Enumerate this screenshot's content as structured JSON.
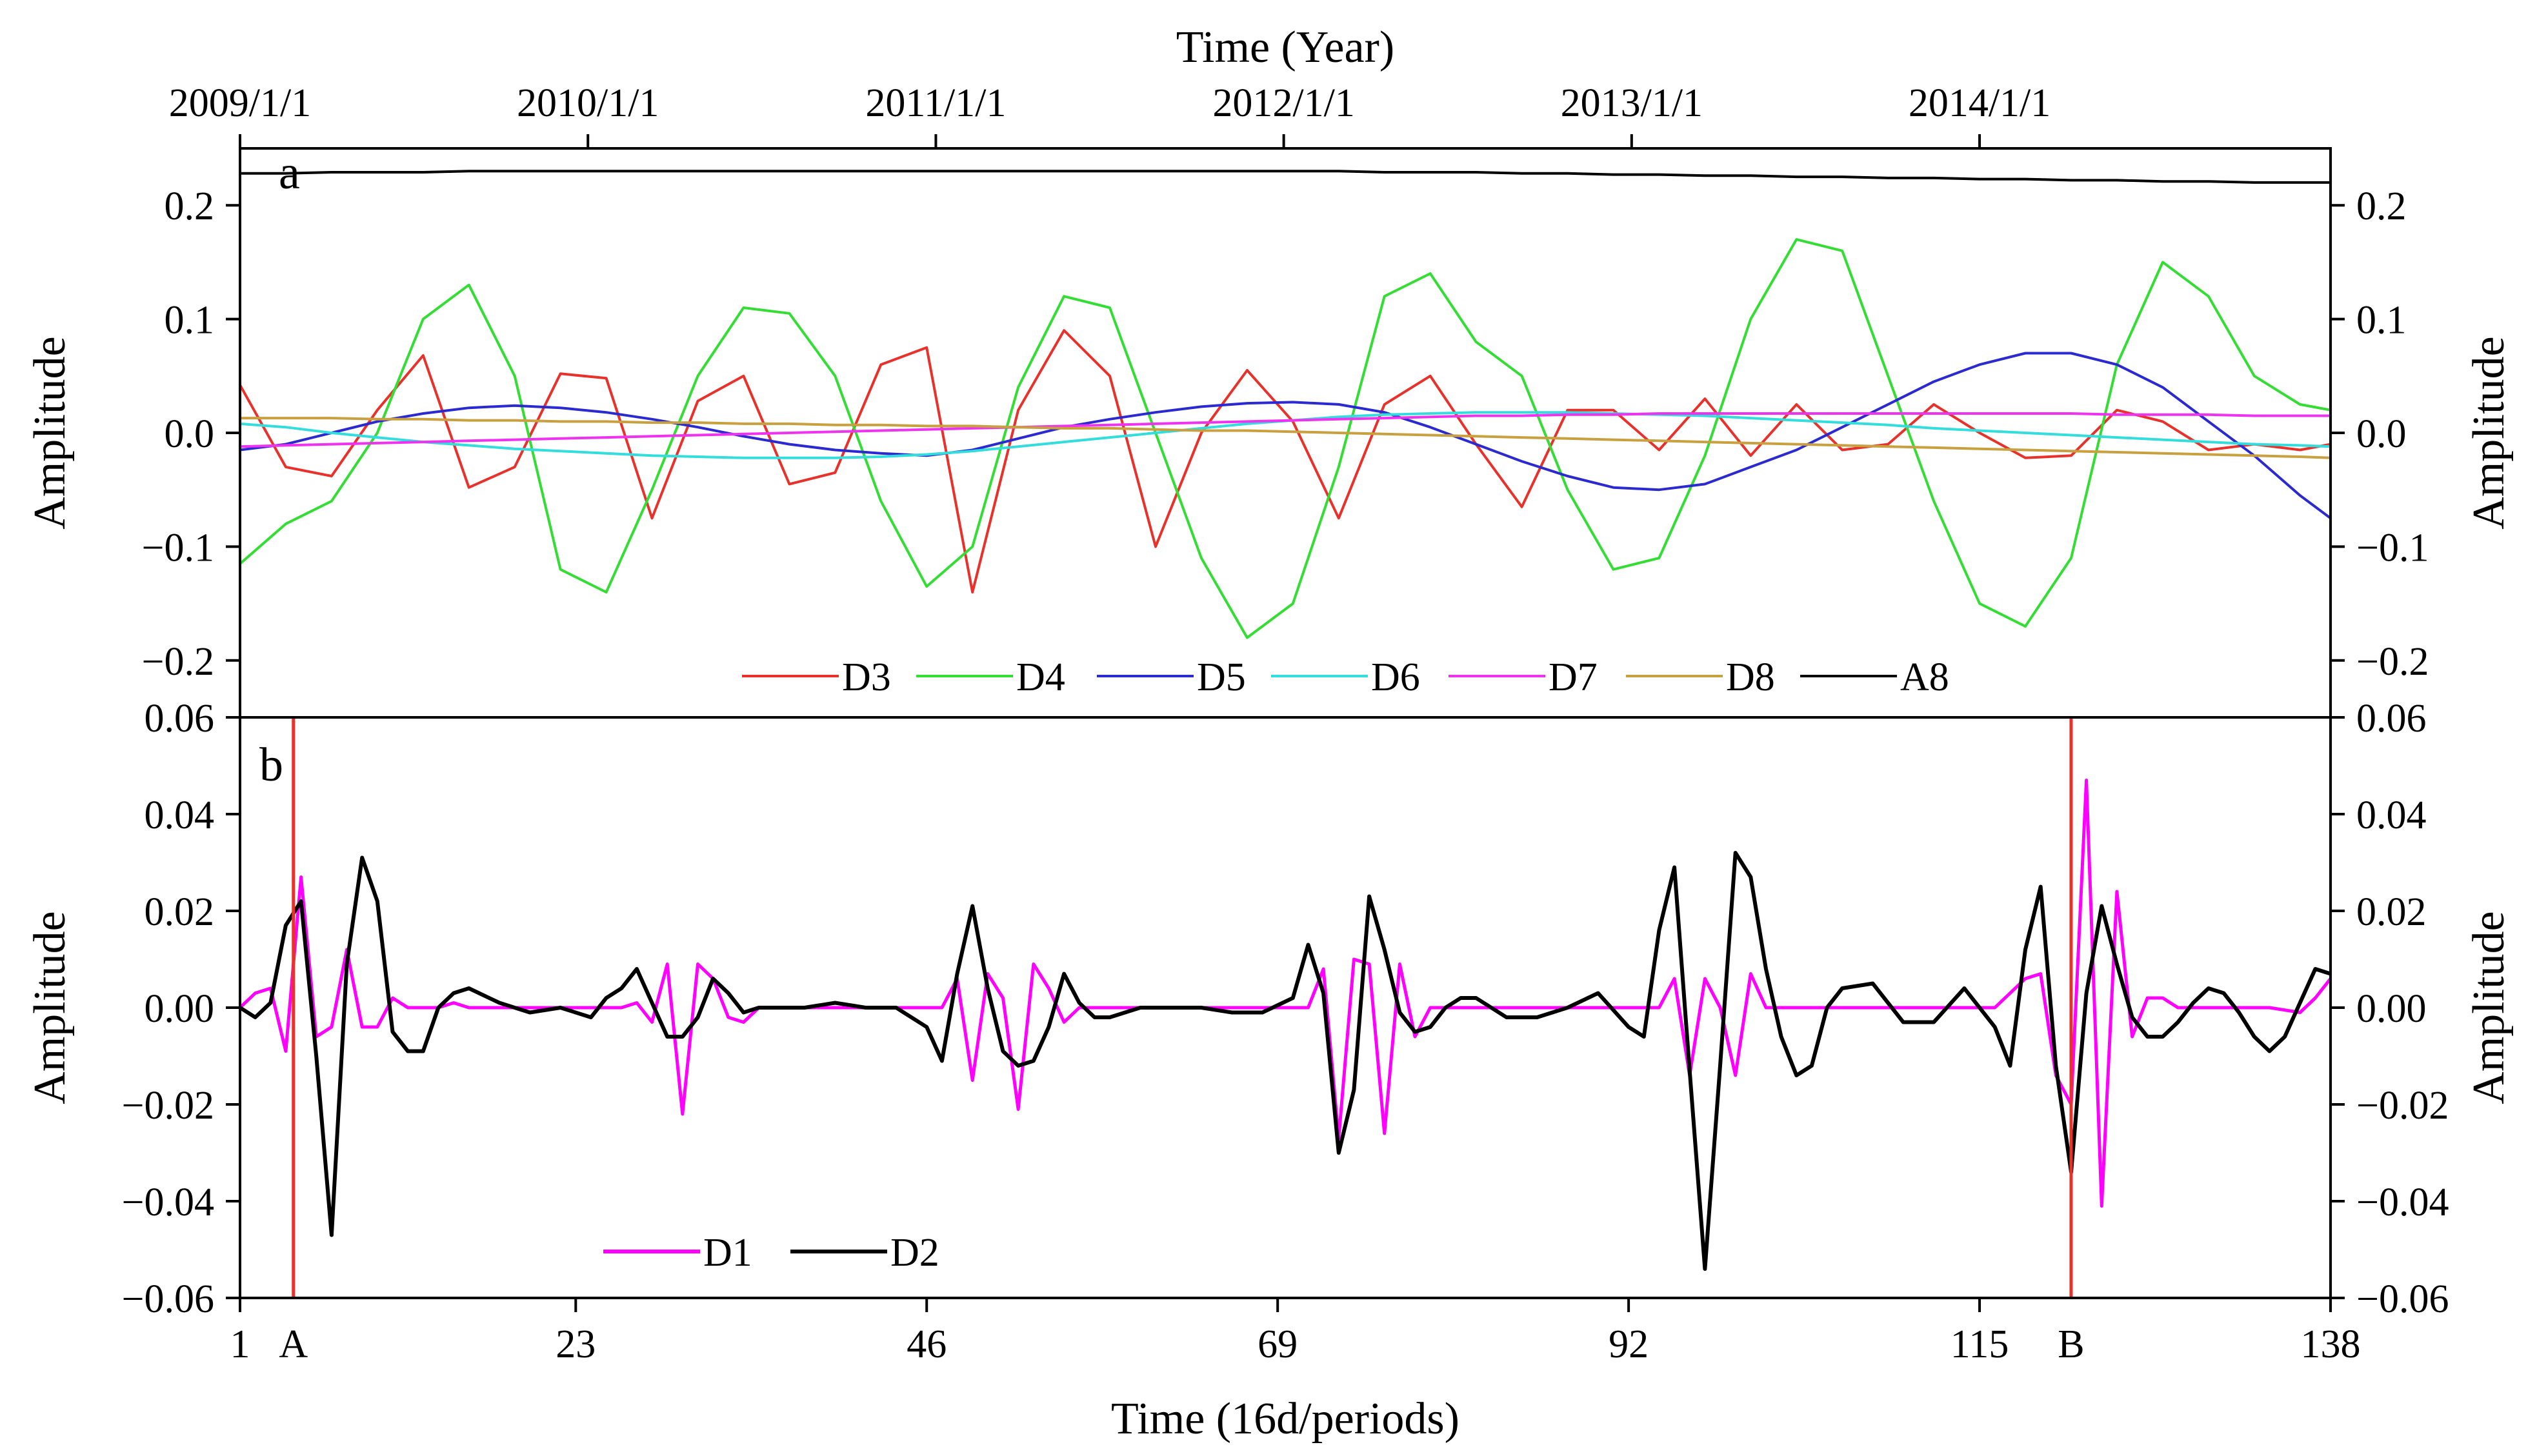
{
  "chart_data": [
    {
      "panel_label": "a",
      "type": "line",
      "top_axis": {
        "title": "Time (Year)",
        "tick_labels": [
          "2009/1/1",
          "2010/1/1",
          "2011/1/1",
          "2012/1/1",
          "2013/1/1",
          "2014/1/1"
        ],
        "tick_periods": [
          1,
          23.8,
          46.6,
          69.4,
          92.2,
          115
        ]
      },
      "ylabel": "Amplitude",
      "ylabel_right": "Amplitude",
      "xlim": [
        1,
        138
      ],
      "ylim": [
        -0.25,
        0.25
      ],
      "yticks": [
        -0.2,
        -0.1,
        0.0,
        0.1,
        0.2
      ],
      "ytick_labels": [
        "−0.2",
        "−0.1",
        "0.0",
        "0.1",
        "0.2"
      ],
      "x": [
        1,
        4,
        7,
        10,
        13,
        16,
        19,
        22,
        25,
        28,
        31,
        34,
        37,
        40,
        43,
        46,
        49,
        52,
        55,
        58,
        61,
        64,
        67,
        70,
        73,
        76,
        79,
        82,
        85,
        88,
        91,
        94,
        97,
        100,
        103,
        106,
        109,
        112,
        115,
        118,
        121,
        124,
        127,
        130,
        133,
        136,
        138
      ],
      "series": [
        {
          "name": "D3",
          "color": "#e8312a",
          "values": [
            0.042,
            -0.03,
            -0.038,
            0.02,
            0.068,
            -0.048,
            -0.03,
            0.052,
            0.048,
            -0.075,
            0.028,
            0.05,
            -0.045,
            -0.035,
            0.06,
            0.075,
            -0.14,
            0.02,
            0.09,
            0.05,
            -0.1,
            0.0,
            0.055,
            0.01,
            -0.075,
            0.025,
            0.05,
            -0.01,
            -0.065,
            0.02,
            0.02,
            -0.015,
            0.03,
            -0.02,
            0.025,
            -0.015,
            -0.01,
            0.025,
            0.0,
            -0.022,
            -0.02,
            0.02,
            0.01,
            -0.015,
            -0.01,
            -0.015,
            -0.01
          ]
        },
        {
          "name": "D4",
          "color": "#33dd33",
          "values": [
            -0.115,
            -0.08,
            -0.06,
            0.0,
            0.1,
            0.13,
            0.05,
            -0.12,
            -0.14,
            -0.05,
            0.05,
            0.11,
            0.105,
            0.05,
            -0.06,
            -0.135,
            -0.1,
            0.04,
            0.12,
            0.11,
            0.0,
            -0.11,
            -0.18,
            -0.15,
            -0.03,
            0.12,
            0.14,
            0.08,
            0.05,
            -0.05,
            -0.12,
            -0.11,
            -0.02,
            0.1,
            0.17,
            0.16,
            0.05,
            -0.06,
            -0.15,
            -0.17,
            -0.11,
            0.06,
            0.15,
            0.12,
            0.05,
            0.025,
            0.02
          ]
        },
        {
          "name": "D5",
          "color": "#2a2ad0",
          "values": [
            -0.015,
            -0.01,
            0.0,
            0.01,
            0.017,
            0.022,
            0.024,
            0.022,
            0.018,
            0.012,
            0.005,
            -0.003,
            -0.01,
            -0.015,
            -0.018,
            -0.02,
            -0.015,
            -0.005,
            0.005,
            0.012,
            0.018,
            0.023,
            0.026,
            0.027,
            0.025,
            0.018,
            0.005,
            -0.01,
            -0.025,
            -0.038,
            -0.048,
            -0.05,
            -0.045,
            -0.03,
            -0.015,
            0.005,
            0.025,
            0.045,
            0.06,
            0.07,
            0.07,
            0.06,
            0.04,
            0.01,
            -0.02,
            -0.055,
            -0.075
          ]
        },
        {
          "name": "D6",
          "color": "#33dddd",
          "values": [
            0.008,
            0.005,
            0.0,
            -0.004,
            -0.008,
            -0.011,
            -0.014,
            -0.016,
            -0.018,
            -0.02,
            -0.021,
            -0.022,
            -0.022,
            -0.022,
            -0.021,
            -0.019,
            -0.016,
            -0.012,
            -0.008,
            -0.004,
            0.0,
            0.004,
            0.008,
            0.011,
            0.014,
            0.016,
            0.017,
            0.018,
            0.018,
            0.018,
            0.017,
            0.016,
            0.015,
            0.013,
            0.011,
            0.009,
            0.007,
            0.004,
            0.002,
            0.0,
            -0.002,
            -0.004,
            -0.006,
            -0.008,
            -0.01,
            -0.011,
            -0.012
          ]
        },
        {
          "name": "D7",
          "color": "#ee33ee",
          "values": [
            -0.012,
            -0.011,
            -0.01,
            -0.009,
            -0.008,
            -0.007,
            -0.006,
            -0.005,
            -0.004,
            -0.003,
            -0.002,
            -0.001,
            0.0,
            0.001,
            0.002,
            0.003,
            0.004,
            0.005,
            0.006,
            0.007,
            0.008,
            0.009,
            0.01,
            0.011,
            0.012,
            0.013,
            0.014,
            0.015,
            0.015,
            0.016,
            0.016,
            0.017,
            0.017,
            0.017,
            0.017,
            0.017,
            0.017,
            0.017,
            0.017,
            0.017,
            0.017,
            0.016,
            0.016,
            0.016,
            0.015,
            0.015,
            0.015
          ]
        },
        {
          "name": "D8",
          "color": "#c8a040",
          "values": [
            0.013,
            0.013,
            0.013,
            0.012,
            0.012,
            0.011,
            0.011,
            0.01,
            0.01,
            0.009,
            0.009,
            0.008,
            0.008,
            0.007,
            0.007,
            0.006,
            0.006,
            0.005,
            0.004,
            0.004,
            0.003,
            0.002,
            0.002,
            0.001,
            0.0,
            -0.001,
            -0.002,
            -0.003,
            -0.004,
            -0.005,
            -0.006,
            -0.007,
            -0.008,
            -0.009,
            -0.01,
            -0.011,
            -0.012,
            -0.013,
            -0.014,
            -0.015,
            -0.016,
            -0.017,
            -0.018,
            -0.019,
            -0.02,
            -0.021,
            -0.022
          ]
        },
        {
          "name": "A8",
          "color": "#000000",
          "values": [
            0.228,
            0.228,
            0.229,
            0.229,
            0.229,
            0.23,
            0.23,
            0.23,
            0.23,
            0.23,
            0.23,
            0.23,
            0.23,
            0.23,
            0.23,
            0.23,
            0.23,
            0.23,
            0.23,
            0.23,
            0.23,
            0.23,
            0.23,
            0.23,
            0.23,
            0.229,
            0.229,
            0.229,
            0.228,
            0.228,
            0.227,
            0.227,
            0.226,
            0.226,
            0.225,
            0.225,
            0.224,
            0.224,
            0.223,
            0.223,
            0.222,
            0.222,
            0.221,
            0.221,
            0.22,
            0.22,
            0.22
          ]
        }
      ],
      "legend": [
        "D3",
        "D4",
        "D5",
        "D6",
        "D7",
        "D8",
        "A8"
      ]
    },
    {
      "panel_label": "b",
      "type": "line",
      "xlabel": "Time (16d/periods)",
      "ylabel": "Amplitude",
      "ylabel_right": "Amplitude",
      "xlim": [
        1,
        138
      ],
      "xticks": [
        1,
        23,
        46,
        69,
        92,
        115,
        138
      ],
      "xtick_labels": [
        "1",
        "23",
        "46",
        "69",
        "92",
        "115",
        "138"
      ],
      "ylim": [
        -0.06,
        0.06
      ],
      "yticks": [
        -0.06,
        -0.04,
        -0.02,
        0.0,
        0.02,
        0.04,
        0.06
      ],
      "ytick_labels": [
        "−0.06",
        "−0.04",
        "−0.02",
        "0.00",
        "0.02",
        "0.04",
        "0.06"
      ],
      "series": [
        {
          "name": "D1",
          "color": "#ff00ff",
          "x": [
            1,
            2,
            3,
            4,
            5,
            6,
            7,
            8,
            9,
            10,
            11,
            12,
            13,
            14,
            15,
            16,
            18,
            20,
            22,
            24,
            26,
            27,
            28,
            29,
            30,
            31,
            32,
            33,
            34,
            35,
            37,
            40,
            44,
            47,
            48,
            49,
            50,
            51,
            52,
            53,
            54,
            55,
            56,
            57,
            58,
            60,
            65,
            70,
            71,
            72,
            73,
            74,
            75,
            76,
            77,
            78,
            79,
            80,
            81,
            82,
            84,
            88,
            92,
            94,
            95,
            96,
            97,
            98,
            99,
            100,
            101,
            102,
            103,
            104,
            105,
            106,
            108,
            112,
            116,
            118,
            119,
            120,
            121,
            122,
            123,
            124,
            125,
            126,
            127,
            128,
            129,
            130,
            131,
            132,
            134,
            136,
            137,
            138
          ],
          "values": [
            0.0,
            0.003,
            0.004,
            -0.009,
            0.027,
            -0.006,
            -0.004,
            0.012,
            -0.004,
            -0.004,
            0.002,
            0.0,
            0.0,
            0.0,
            0.001,
            0.0,
            0.0,
            0.0,
            0.0,
            0.0,
            0.0,
            0.001,
            -0.003,
            0.009,
            -0.022,
            0.009,
            0.006,
            -0.002,
            -0.003,
            0.0,
            0.0,
            0.0,
            0.0,
            0.0,
            0.006,
            -0.015,
            0.007,
            0.002,
            -0.021,
            0.009,
            0.004,
            -0.003,
            0.0,
            0.0,
            0.0,
            0.0,
            0.0,
            0.0,
            0.0,
            0.008,
            -0.027,
            0.01,
            0.009,
            -0.026,
            0.009,
            -0.006,
            0.0,
            0.0,
            0.0,
            0.0,
            0.0,
            0.0,
            0.0,
            0.0,
            0.006,
            -0.014,
            0.006,
            0.0,
            -0.014,
            0.007,
            0.0,
            0.0,
            0.0,
            0.0,
            0.0,
            0.0,
            0.0,
            0.0,
            0.0,
            0.006,
            0.007,
            -0.014,
            -0.02,
            0.047,
            -0.041,
            0.024,
            -0.006,
            0.002,
            0.002,
            0.0,
            0.0,
            0.0,
            0.0,
            0.0,
            0.0,
            -0.001,
            0.002,
            0.006
          ]
        },
        {
          "name": "D2",
          "color": "#000000",
          "x": [
            1,
            2,
            3,
            4,
            5,
            6,
            7,
            8,
            9,
            10,
            11,
            12,
            13,
            14,
            15,
            16,
            18,
            20,
            22,
            24,
            25,
            26,
            27,
            28,
            29,
            30,
            31,
            32,
            33,
            34,
            35,
            36,
            38,
            40,
            42,
            44,
            46,
            47,
            48,
            49,
            50,
            51,
            52,
            53,
            54,
            55,
            56,
            57,
            58,
            60,
            62,
            64,
            66,
            68,
            70,
            71,
            72,
            73,
            74,
            75,
            76,
            77,
            78,
            79,
            80,
            81,
            82,
            84,
            86,
            88,
            90,
            92,
            93,
            94,
            95,
            96,
            97,
            98,
            99,
            100,
            101,
            102,
            103,
            104,
            105,
            106,
            108,
            110,
            112,
            114,
            116,
            117,
            118,
            119,
            120,
            121,
            122,
            123,
            124,
            125,
            126,
            127,
            128,
            129,
            130,
            131,
            132,
            133,
            134,
            135,
            136,
            137,
            138
          ],
          "values": [
            0.0,
            -0.002,
            0.001,
            0.017,
            0.022,
            -0.01,
            -0.047,
            0.009,
            0.031,
            0.022,
            -0.005,
            -0.009,
            -0.009,
            0.0,
            0.003,
            0.004,
            0.001,
            -0.001,
            0.0,
            -0.002,
            0.002,
            0.004,
            0.008,
            0.001,
            -0.006,
            -0.006,
            -0.002,
            0.006,
            0.003,
            -0.001,
            0.0,
            0.0,
            0.0,
            0.001,
            0.0,
            0.0,
            -0.004,
            -0.011,
            0.007,
            0.021,
            0.004,
            -0.009,
            -0.012,
            -0.011,
            -0.004,
            0.007,
            0.001,
            -0.002,
            -0.002,
            0.0,
            0.0,
            0.0,
            -0.001,
            -0.001,
            0.002,
            0.013,
            0.003,
            -0.03,
            -0.017,
            0.023,
            0.012,
            -0.001,
            -0.005,
            -0.004,
            0.0,
            0.002,
            0.002,
            -0.002,
            -0.002,
            0.0,
            0.003,
            -0.004,
            -0.006,
            0.016,
            0.029,
            -0.013,
            -0.054,
            -0.012,
            0.032,
            0.027,
            0.008,
            -0.006,
            -0.014,
            -0.012,
            0.0,
            0.004,
            0.005,
            -0.003,
            -0.003,
            0.004,
            -0.004,
            -0.012,
            0.012,
            0.025,
            -0.012,
            -0.034,
            0.003,
            0.021,
            0.009,
            -0.002,
            -0.006,
            -0.006,
            -0.003,
            0.001,
            0.004,
            0.003,
            -0.001,
            -0.006,
            -0.009,
            -0.006,
            0.001,
            0.008,
            0.007
          ]
        }
      ],
      "markers": [
        {
          "label": "A",
          "x": 4.5,
          "color": "#e8312a"
        },
        {
          "label": "B",
          "x": 121,
          "color": "#e8312a"
        }
      ],
      "legend": [
        "D1",
        "D2"
      ]
    }
  ]
}
